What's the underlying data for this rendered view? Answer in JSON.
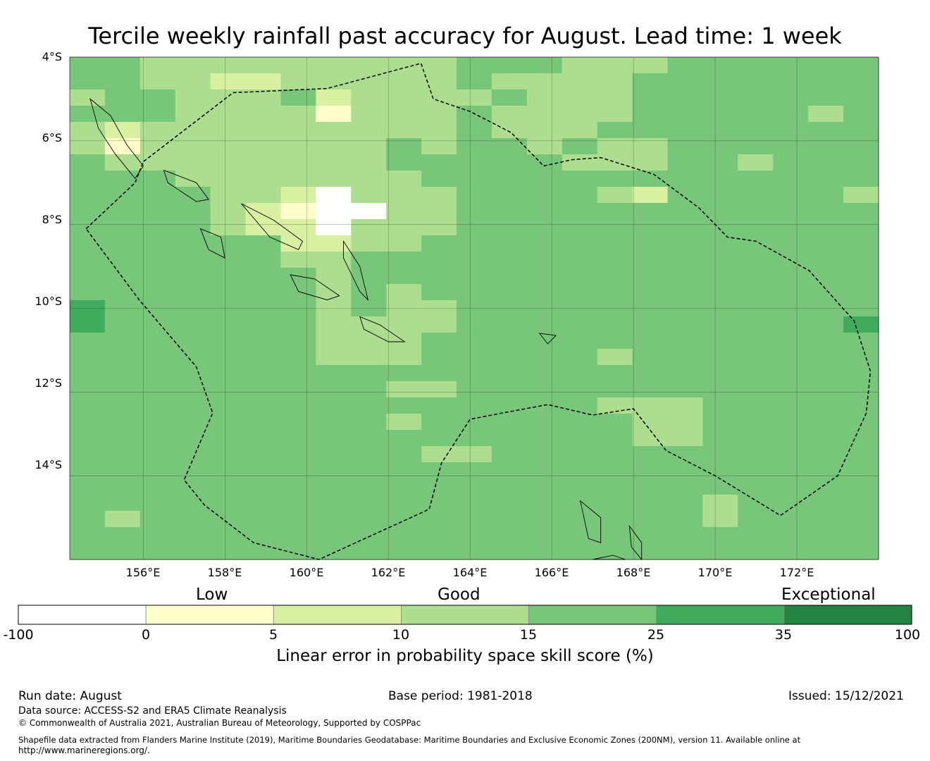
{
  "title": "Tercile weekly rainfall past accuracy for August. Lead time: 1 week",
  "map": {
    "lon_range": [
      154.2,
      174.0
    ],
    "lat_range": [
      -16.0,
      -4.0
    ],
    "cell_size_deg": 0.83,
    "lat_ticks": [
      "4°S",
      "6°S",
      "8°S",
      "10°S",
      "12°S",
      "14°S"
    ],
    "lat_tick_values": [
      -4,
      -6,
      -8,
      -10,
      -12,
      -14
    ],
    "lon_ticks": [
      "156°E",
      "158°E",
      "160°E",
      "162°E",
      "164°E",
      "166°E",
      "168°E",
      "170°E",
      "172°E"
    ],
    "lon_tick_values": [
      156,
      158,
      160,
      162,
      164,
      166,
      168,
      170,
      172
    ],
    "grid": true,
    "category_colors": [
      "#ffffff",
      "#ffffcc",
      "#d9f0a3",
      "#addd8e",
      "#78c679",
      "#41ab5d",
      "#238443"
    ],
    "skill_grid": [
      "44333333333444333444444",
      "44332233333433334444444",
      "34433342333343334444444",
      "44433331333433334444434",
      "32333333333433344444444",
      "31333333343443433444444",
      "43333333344444333443444",
      "44433333334444444444444",
      "44443320333444432444443",
      "44443210033444444444444",
      "44443220333444444444444",
      "44444422334444444444444",
      "44444433444444444444444",
      "44444443444444444444444",
      "44444443434444444444444",
      "54444443433444444444444",
      "54444443333444444444445",
      "44444443334444444444444",
      "44444443334444434444444",
      "44444444444444444444444",
      "44444444433444444444444",
      "44444444444444433344444",
      "44444444434444443344444",
      "44444444444444443344444",
      "44444444443344444444444",
      "44444444444444444444444",
      "44444444444444444444444",
      "44444444444444444434444",
      "43444444444444444434444",
      "44444444444444444444444",
      "44444444444444444444444"
    ],
    "eez_boundary": [
      [
        154.6,
        -8.1
      ],
      [
        155.8,
        -7.0
      ],
      [
        156.0,
        -6.5
      ],
      [
        158.2,
        -4.85
      ],
      [
        160.5,
        -4.75
      ],
      [
        162.8,
        -4.15
      ],
      [
        163.1,
        -5.0
      ],
      [
        164.0,
        -5.3
      ],
      [
        165.0,
        -5.8
      ],
      [
        165.8,
        -6.6
      ],
      [
        166.5,
        -6.45
      ],
      [
        167.2,
        -6.4
      ],
      [
        168.5,
        -6.8
      ],
      [
        169.6,
        -7.6
      ],
      [
        170.3,
        -8.3
      ],
      [
        171.0,
        -8.4
      ],
      [
        172.3,
        -9.1
      ],
      [
        173.4,
        -10.3
      ],
      [
        173.8,
        -11.5
      ],
      [
        173.7,
        -12.5
      ],
      [
        173.0,
        -14.0
      ],
      [
        171.6,
        -14.95
      ],
      [
        170.0,
        -14.0
      ],
      [
        168.8,
        -13.4
      ],
      [
        168.0,
        -12.4
      ],
      [
        167.0,
        -12.55
      ],
      [
        165.9,
        -12.3
      ],
      [
        164.8,
        -12.5
      ],
      [
        164.0,
        -12.65
      ],
      [
        163.3,
        -13.7
      ],
      [
        163.0,
        -14.8
      ],
      [
        160.3,
        -16.0
      ],
      [
        158.7,
        -15.6
      ],
      [
        157.5,
        -14.7
      ],
      [
        157.0,
        -14.1
      ],
      [
        157.7,
        -12.5
      ],
      [
        157.3,
        -11.4
      ],
      [
        155.9,
        -9.8
      ],
      [
        154.6,
        -8.1
      ]
    ],
    "islands": [
      [
        [
          154.7,
          -5.0
        ],
        [
          155.2,
          -5.4
        ],
        [
          155.6,
          -6.1
        ],
        [
          156.0,
          -6.6
        ],
        [
          155.8,
          -6.9
        ],
        [
          155.3,
          -6.3
        ],
        [
          154.9,
          -5.7
        ],
        [
          154.7,
          -5.0
        ]
      ],
      [
        [
          156.5,
          -6.7
        ],
        [
          157.3,
          -7.0
        ],
        [
          157.6,
          -7.4
        ],
        [
          157.3,
          -7.45
        ],
        [
          156.6,
          -7.0
        ],
        [
          156.5,
          -6.7
        ]
      ],
      [
        [
          158.4,
          -7.5
        ],
        [
          159.2,
          -7.9
        ],
        [
          159.9,
          -8.4
        ],
        [
          159.8,
          -8.6
        ],
        [
          159.1,
          -8.3
        ],
        [
          158.4,
          -7.5
        ]
      ],
      [
        [
          159.6,
          -9.2
        ],
        [
          160.2,
          -9.3
        ],
        [
          160.8,
          -9.7
        ],
        [
          160.5,
          -9.8
        ],
        [
          159.8,
          -9.6
        ],
        [
          159.6,
          -9.2
        ]
      ],
      [
        [
          160.9,
          -8.4
        ],
        [
          161.3,
          -9.0
        ],
        [
          161.5,
          -9.8
        ],
        [
          161.3,
          -9.6
        ],
        [
          160.9,
          -8.8
        ],
        [
          160.9,
          -8.4
        ]
      ],
      [
        [
          161.3,
          -10.2
        ],
        [
          161.8,
          -10.4
        ],
        [
          162.4,
          -10.8
        ],
        [
          162.0,
          -10.8
        ],
        [
          161.4,
          -10.5
        ],
        [
          161.3,
          -10.2
        ]
      ],
      [
        [
          157.4,
          -8.1
        ],
        [
          157.9,
          -8.3
        ],
        [
          158.0,
          -8.8
        ],
        [
          157.6,
          -8.6
        ],
        [
          157.4,
          -8.1
        ]
      ],
      [
        [
          165.7,
          -10.6
        ],
        [
          166.1,
          -10.65
        ],
        [
          165.9,
          -10.85
        ],
        [
          165.7,
          -10.6
        ]
      ],
      [
        [
          166.7,
          -14.6
        ],
        [
          167.2,
          -15.0
        ],
        [
          167.2,
          -15.6
        ],
        [
          166.9,
          -15.5
        ],
        [
          166.7,
          -14.6
        ]
      ],
      [
        [
          167.9,
          -15.2
        ],
        [
          168.2,
          -15.6
        ],
        [
          168.2,
          -16.0
        ],
        [
          167.95,
          -15.7
        ],
        [
          167.9,
          -15.2
        ]
      ],
      [
        [
          167.0,
          -16.0
        ],
        [
          167.5,
          -15.9
        ],
        [
          167.8,
          -16.0
        ],
        [
          167.0,
          -16.0
        ]
      ]
    ]
  },
  "colorbar": {
    "category_labels": [
      "Low",
      "Good",
      "Exceptional"
    ],
    "tick_labels": [
      "-100",
      "0",
      "5",
      "10",
      "15",
      "25",
      "35",
      "100"
    ],
    "title": "Linear error in probability space skill score (%)"
  },
  "footer": {
    "run_date": "Run date: August",
    "base_period": "Base period: 1981-2018",
    "issued": "Issued: 15/12/2021",
    "data_source": "Data source: ACCESS-S2 and ERA5 Climate Reanalysis",
    "copyright": "© Commonwealth of Australia 2021, Australian Bureau of Meteorology, Supported by COSPPac",
    "shapefile_line1": "Shapefile data extracted from Flanders Marine Institute (2019), Maritime Boundaries Geodatabase: Maritime Boundaries and Exclusive Economic Zones (200NM), version 11. Available online at",
    "shapefile_line2": "http://www.marineregions.org/."
  }
}
